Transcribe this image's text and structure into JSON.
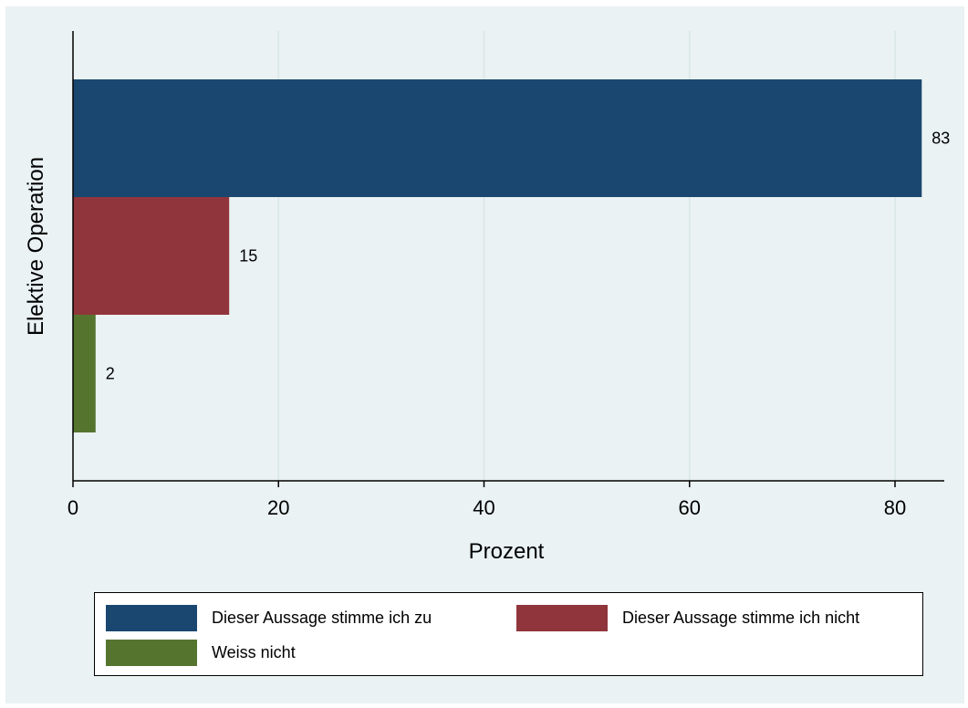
{
  "chart_data": {
    "type": "bar",
    "orientation": "horizontal",
    "category": "Elektive Operation",
    "ylabel": "Elektive Operation",
    "xlabel": "Prozent",
    "xlim": [
      0,
      85
    ],
    "xticks": [
      0,
      20,
      40,
      60,
      80
    ],
    "grid": true,
    "legend_position": "bottom",
    "series": [
      {
        "name": "Dieser Aussage stimme ich zu",
        "value": 82.6,
        "label": "83",
        "color": "#1a476f"
      },
      {
        "name": "Dieser Aussage stimme ich nicht",
        "value": 15.2,
        "label": "15",
        "color": "#90353b"
      },
      {
        "name": "Weiss nicht",
        "value": 2.2,
        "label": "2",
        "color": "#55752f"
      }
    ]
  }
}
